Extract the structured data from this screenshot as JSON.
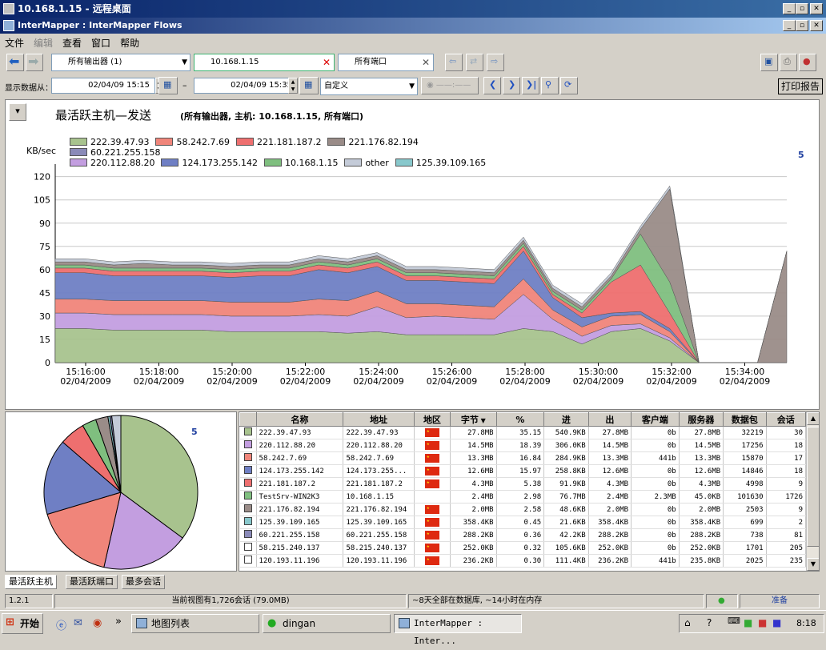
{
  "window": {
    "outer_title": "10.168.1.15 - 远程桌面",
    "inner_title": "InterMapper : InterMapper Flows"
  },
  "menu": [
    "文件",
    "编辑",
    "查看",
    "窗口",
    "帮助"
  ],
  "toolbar": {
    "exporter": "所有输出器 (1)",
    "host": "10.168.1.15",
    "port": "所有端口",
    "print_report": "打印报告"
  },
  "timebar": {
    "label": "显示数据从：",
    "from": "02/04/09 15:15",
    "dash": "–",
    "to": "02/04/09 15:35",
    "preset": "自定义",
    "live": "——:——"
  },
  "chart_header": {
    "title": "最活跃主机—发送",
    "subtitle": "(所有输出器, 主机: 10.168.1.15, 所有端口)",
    "zoom_badge": "5"
  },
  "colors": {
    "c1": "#a8c38e",
    "c2": "#c39ee0",
    "c3": "#f0857a",
    "c4": "#6f7fc4",
    "c5": "#ee6f6f",
    "c6": "#7fbf7f",
    "c7": "#9a8c88",
    "c8": "#88c8cc",
    "c9": "#8a8ab8",
    "c10": "#c4cbd8"
  },
  "chart_data": {
    "type": "area",
    "ylabel": "KB/sec",
    "yticks": [
      "0",
      "15",
      "30",
      "45",
      "60",
      "75",
      "90",
      "105",
      "120"
    ],
    "ylim": [
      0,
      125
    ],
    "xticks": [
      {
        "t": "15:16:00",
        "d": "02/04/2009"
      },
      {
        "t": "15:18:00",
        "d": "02/04/2009"
      },
      {
        "t": "15:20:00",
        "d": "02/04/2009"
      },
      {
        "t": "15:22:00",
        "d": "02/04/2009"
      },
      {
        "t": "15:24:00",
        "d": "02/04/2009"
      },
      {
        "t": "15:26:00",
        "d": "02/04/2009"
      },
      {
        "t": "15:28:00",
        "d": "02/04/2009"
      },
      {
        "t": "15:30:00",
        "d": "02/04/2009"
      },
      {
        "t": "15:32:00",
        "d": "02/04/2009"
      },
      {
        "t": "15:34:00",
        "d": "02/04/2009"
      }
    ],
    "legend": [
      {
        "name": "222.39.47.93",
        "color": "#a8c38e"
      },
      {
        "name": "58.242.7.69",
        "color": "#f0857a"
      },
      {
        "name": "221.181.187.2",
        "color": "#ee6f6f"
      },
      {
        "name": "221.176.82.194",
        "color": "#9a8c88"
      },
      {
        "name": "60.221.255.158",
        "color": "#8a8ab8"
      },
      {
        "name": "220.112.88.20",
        "color": "#c39ee0"
      },
      {
        "name": "124.173.255.142",
        "color": "#6f7fc4"
      },
      {
        "name": "10.168.1.15",
        "color": "#7fbf7f"
      },
      {
        "name": "other",
        "color": "#c4cbd8"
      },
      {
        "name": "125.39.109.165",
        "color": "#88c8cc"
      }
    ],
    "x": [
      "15:15",
      "15:16",
      "15:17",
      "15:18",
      "15:19",
      "15:20",
      "15:21",
      "15:22",
      "15:23",
      "15:24",
      "15:25",
      "15:26",
      "15:27",
      "15:28",
      "15:29",
      "15:30",
      "15:30.5",
      "15:31",
      "15:31.5",
      "15:32",
      "15:32.5",
      "15:33",
      "15:33.5",
      "15:34",
      "15:34.5",
      "15:35"
    ],
    "series": [
      {
        "name": "222.39.47.93",
        "values": [
          22,
          22,
          21,
          21,
          21,
          21,
          20,
          20,
          20,
          20,
          19,
          20,
          18,
          18,
          18,
          18,
          22,
          20,
          12,
          20,
          22,
          14,
          0,
          0,
          0,
          0
        ]
      },
      {
        "name": "220.112.88.20",
        "values": [
          10,
          10,
          10,
          10,
          10,
          10,
          10,
          10,
          10,
          11,
          11,
          16,
          11,
          12,
          11,
          10,
          22,
          8,
          5,
          4,
          3,
          2,
          0,
          0,
          0,
          0
        ]
      },
      {
        "name": "58.242.7.69",
        "values": [
          9,
          9,
          9,
          9,
          9,
          9,
          9,
          9,
          9,
          10,
          10,
          10,
          9,
          8,
          8,
          8,
          10,
          6,
          6,
          6,
          6,
          4,
          0,
          0,
          0,
          0
        ]
      },
      {
        "name": "124.173.255.142",
        "values": [
          17,
          17,
          16,
          16,
          16,
          16,
          16,
          17,
          17,
          19,
          18,
          16,
          15,
          15,
          15,
          15,
          18,
          8,
          6,
          2,
          2,
          2,
          0,
          0,
          0,
          0
        ]
      },
      {
        "name": "221.181.187.2",
        "values": [
          3,
          3,
          3,
          3,
          3,
          3,
          3,
          3,
          3,
          3,
          3,
          3,
          3,
          3,
          3,
          3,
          3,
          2,
          3,
          20,
          30,
          10,
          0,
          0,
          0,
          0
        ]
      },
      {
        "name": "10.168.1.15",
        "values": [
          2,
          2,
          2,
          2,
          2,
          2,
          2,
          2,
          2,
          2,
          2,
          2,
          2,
          2,
          2,
          2,
          2,
          2,
          2,
          2,
          20,
          20,
          0,
          0,
          0,
          0
        ]
      },
      {
        "name": "221.176.82.194",
        "values": [
          2,
          2,
          2,
          3,
          2,
          2,
          2,
          2,
          2,
          2,
          2,
          2,
          2,
          2,
          2,
          2,
          2,
          2,
          2,
          2,
          3,
          60,
          0,
          0,
          0,
          72
        ]
      },
      {
        "name": "other",
        "values": [
          2,
          2,
          2,
          2,
          2,
          2,
          2,
          2,
          2,
          2,
          2,
          2,
          2,
          2,
          2,
          2,
          2,
          2,
          2,
          2,
          2,
          2,
          0,
          0,
          0,
          0
        ]
      }
    ]
  },
  "pie": {
    "zoom_badge": "5",
    "slices": [
      {
        "name": "222.39.47.93",
        "value": 35.15
      },
      {
        "name": "220.112.88.20",
        "value": 18.39
      },
      {
        "name": "58.242.7.69",
        "value": 16.84
      },
      {
        "name": "124.173.255.142",
        "value": 15.97
      },
      {
        "name": "221.181.187.2",
        "value": 5.38
      },
      {
        "name": "TestSrv-WIN2K3",
        "value": 2.98
      },
      {
        "name": "221.176.82.194",
        "value": 2.58
      },
      {
        "name": "125.39.109.165",
        "value": 0.45
      },
      {
        "name": "60.221.255.158",
        "value": 0.36
      },
      {
        "name": "other",
        "value": 1.9
      }
    ]
  },
  "table": {
    "headers": [
      "名称",
      "地址",
      "地区",
      "字节",
      "%",
      "进",
      "出",
      "客户端",
      "服务器",
      "数据包",
      "会话"
    ],
    "rows": [
      {
        "color": "#a8c38e",
        "name": "222.39.47.93",
        "addr": "222.39.47.93",
        "flag": true,
        "bytes": "27.8MB",
        "pct": "35.15",
        "in": "540.9KB",
        "out": "27.8MB",
        "client": "0b",
        "server": "27.8MB",
        "packets": "32219",
        "sessions": "30"
      },
      {
        "color": "#c39ee0",
        "name": "220.112.88.20",
        "addr": "220.112.88.20",
        "flag": true,
        "bytes": "14.5MB",
        "pct": "18.39",
        "in": "306.0KB",
        "out": "14.5MB",
        "client": "0b",
        "server": "14.5MB",
        "packets": "17256",
        "sessions": "18"
      },
      {
        "color": "#f0857a",
        "name": "58.242.7.69",
        "addr": "58.242.7.69",
        "flag": true,
        "bytes": "13.3MB",
        "pct": "16.84",
        "in": "284.9KB",
        "out": "13.3MB",
        "client": "441b",
        "server": "13.3MB",
        "packets": "15870",
        "sessions": "17"
      },
      {
        "color": "#6f7fc4",
        "name": "124.173.255.142",
        "addr": "124.173.255...",
        "flag": true,
        "bytes": "12.6MB",
        "pct": "15.97",
        "in": "258.8KB",
        "out": "12.6MB",
        "client": "0b",
        "server": "12.6MB",
        "packets": "14846",
        "sessions": "18"
      },
      {
        "color": "#ee6f6f",
        "name": "221.181.187.2",
        "addr": "221.181.187.2",
        "flag": true,
        "bytes": "4.3MB",
        "pct": "5.38",
        "in": "91.9KB",
        "out": "4.3MB",
        "client": "0b",
        "server": "4.3MB",
        "packets": "4998",
        "sessions": "9"
      },
      {
        "color": "#7fbf7f",
        "name": "TestSrv-WIN2K3",
        "addr": "10.168.1.15",
        "flag": false,
        "bytes": "2.4MB",
        "pct": "2.98",
        "in": "76.7MB",
        "out": "2.4MB",
        "client": "2.3MB",
        "server": "45.0KB",
        "packets": "101630",
        "sessions": "1726"
      },
      {
        "color": "#9a8c88",
        "name": "221.176.82.194",
        "addr": "221.176.82.194",
        "flag": true,
        "bytes": "2.0MB",
        "pct": "2.58",
        "in": "48.6KB",
        "out": "2.0MB",
        "client": "0b",
        "server": "2.0MB",
        "packets": "2503",
        "sessions": "9"
      },
      {
        "color": "#88c8cc",
        "name": "125.39.109.165",
        "addr": "125.39.109.165",
        "flag": true,
        "bytes": "358.4KB",
        "pct": "0.45",
        "in": "21.6KB",
        "out": "358.4KB",
        "client": "0b",
        "server": "358.4KB",
        "packets": "699",
        "sessions": "2"
      },
      {
        "color": "#8a8ab8",
        "name": "60.221.255.158",
        "addr": "60.221.255.158",
        "flag": true,
        "bytes": "288.2KB",
        "pct": "0.36",
        "in": "42.2KB",
        "out": "288.2KB",
        "client": "0b",
        "server": "288.2KB",
        "packets": "738",
        "sessions": "81"
      },
      {
        "color": "#ffffff",
        "name": "58.215.240.137",
        "addr": "58.215.240.137",
        "flag": true,
        "bytes": "252.0KB",
        "pct": "0.32",
        "in": "105.6KB",
        "out": "252.0KB",
        "client": "0b",
        "server": "252.0KB",
        "packets": "1701",
        "sessions": "205"
      },
      {
        "color": "#ffffff",
        "name": "120.193.11.196",
        "addr": "120.193.11.196",
        "flag": true,
        "bytes": "236.2KB",
        "pct": "0.30",
        "in": "111.4KB",
        "out": "236.2KB",
        "client": "441b",
        "server": "235.8KB",
        "packets": "2025",
        "sessions": "235"
      }
    ]
  },
  "tabs": [
    "最活跃主机",
    "最活跃端口",
    "最多会话"
  ],
  "statusbar": {
    "version": "1.2.1",
    "view": "当前视图有1,726会话 (79.0MB)",
    "storage": "~8天全部在数据库, ~14小时在内存",
    "ready": "准备"
  },
  "taskbar": {
    "start": "开始",
    "tasks": [
      "地图列表",
      "dingan",
      "InterMapper : Inter..."
    ],
    "clock": "8:18",
    "chevron": "»"
  }
}
